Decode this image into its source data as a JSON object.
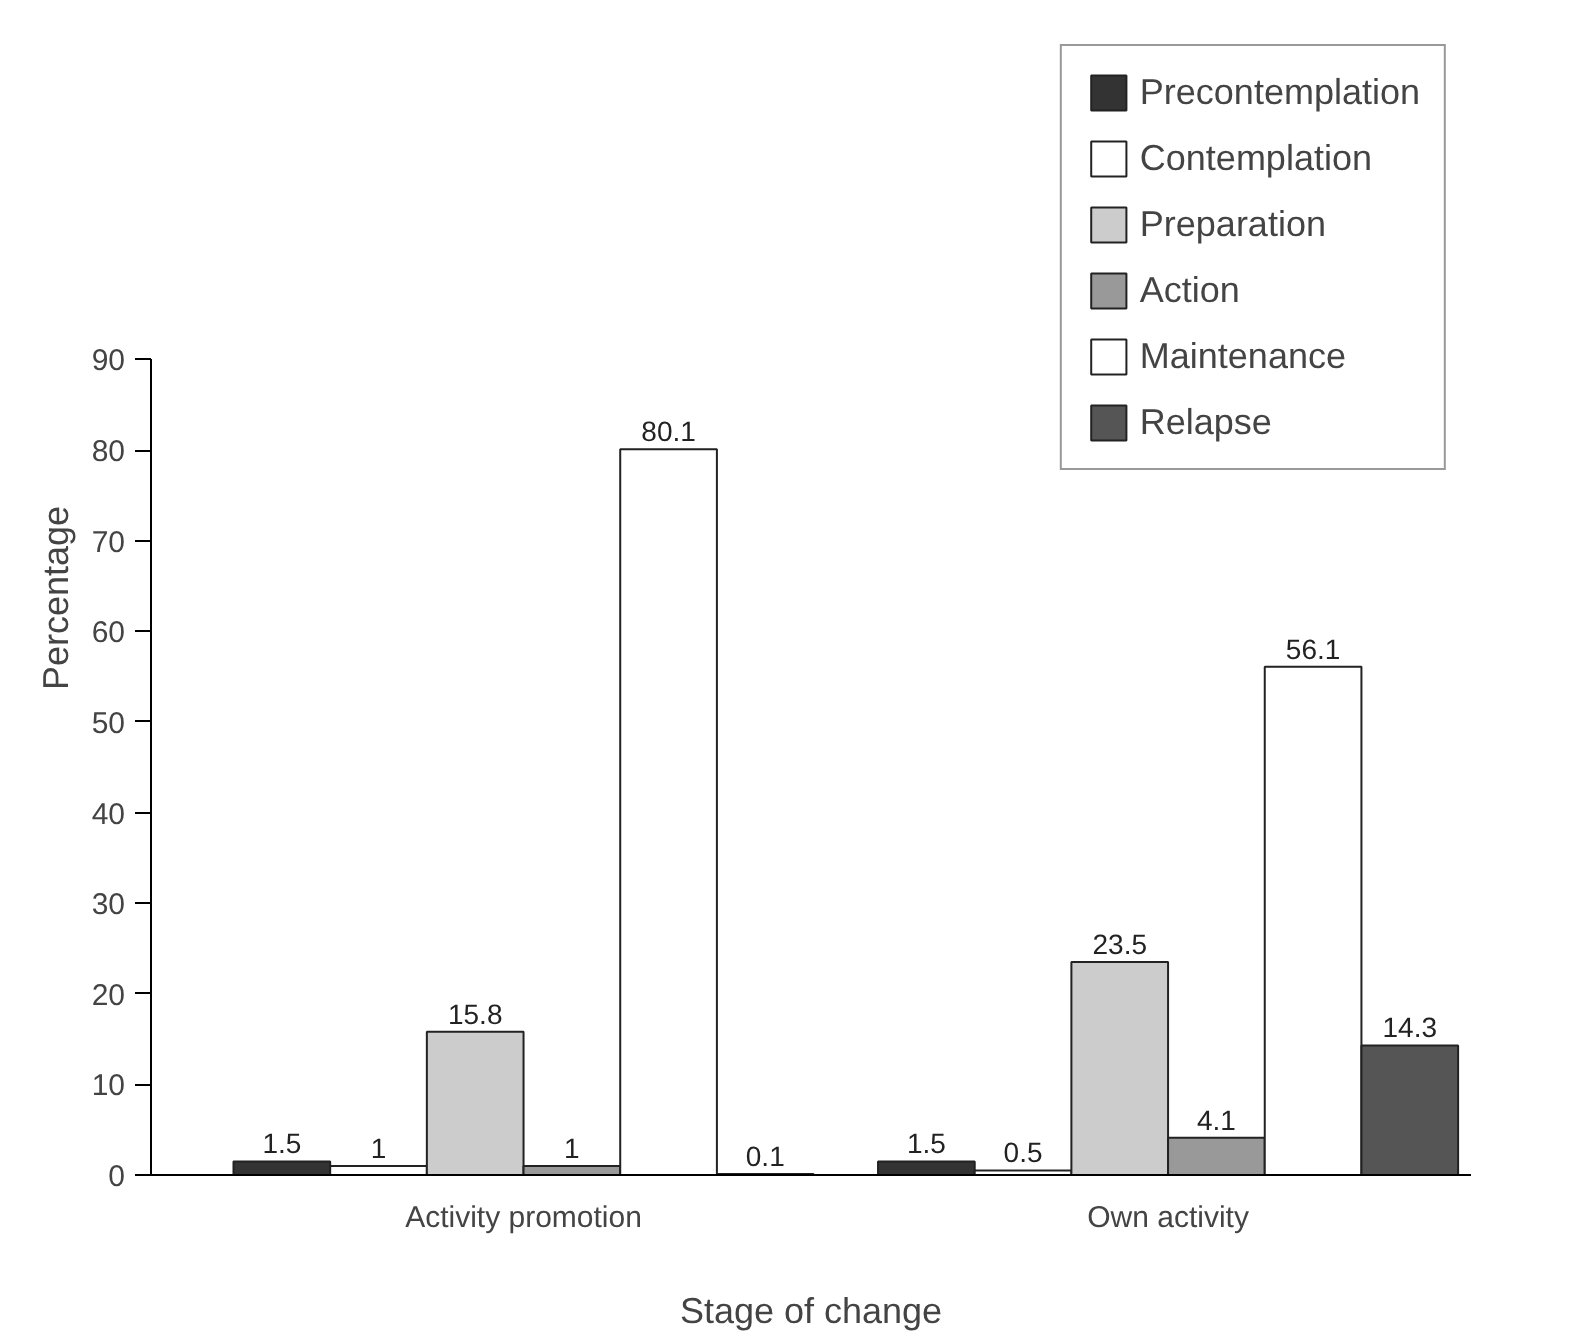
{
  "chart_data": {
    "type": "bar",
    "xlabel": "Stage of change",
    "ylabel": "Percentage",
    "categories": [
      "Activity promotion",
      "Own activity"
    ],
    "series": [
      {
        "name": "Precontemplation",
        "color": "#333333",
        "values": [
          1.5,
          1.5
        ]
      },
      {
        "name": "Contemplation",
        "color": "#ffffff",
        "values": [
          1,
          0.5
        ]
      },
      {
        "name": "Preparation",
        "color": "#cccccc",
        "values": [
          15.8,
          23.5
        ]
      },
      {
        "name": "Action",
        "color": "#999999",
        "values": [
          1,
          4.1
        ]
      },
      {
        "name": "Maintenance",
        "color": "#ffffff",
        "values": [
          80.1,
          56.1
        ]
      },
      {
        "name": "Relapse",
        "color": "#555555",
        "values": [
          0.1,
          14.3
        ]
      }
    ],
    "ylim": [
      0,
      90
    ],
    "yticks": [
      0,
      10,
      20,
      30,
      40,
      50,
      60,
      70,
      80,
      90
    ],
    "grid": false,
    "legend": "top right",
    "data_labels": true
  }
}
